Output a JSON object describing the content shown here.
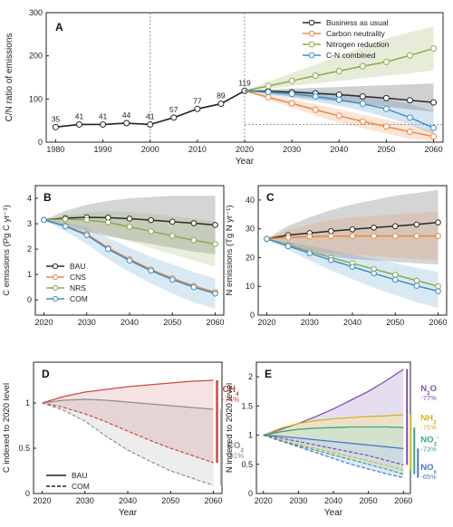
{
  "chart_data": [
    {
      "panel": "A",
      "type": "line",
      "ylabel": "C/N ratio of emissions",
      "xlabel": "Year",
      "xlim": [
        1978,
        2062
      ],
      "ylim": [
        0,
        300
      ],
      "xticks": [
        1980,
        1990,
        2000,
        2010,
        2020,
        2030,
        2040,
        2050,
        2060
      ],
      "yticks": [
        0,
        100,
        200,
        300
      ],
      "vlines": [
        2000,
        2020
      ],
      "hline": 41,
      "history": {
        "x": [
          1980,
          1985,
          1990,
          1995,
          2000,
          2005,
          2010,
          2015,
          2020
        ],
        "values": [
          35,
          41,
          41,
          44,
          41,
          57,
          77,
          89,
          119
        ],
        "labels": [
          "35",
          "41",
          "41",
          "44",
          "41",
          "57",
          "77",
          "89",
          "119"
        ]
      },
      "legend": [
        "Business as usual",
        "Carbon neutrality",
        "Nitrogen reduction",
        "C-N combined"
      ],
      "legend_position": "top-right",
      "series": [
        {
          "name": "Business as usual",
          "color": "#2b2b2b",
          "x": [
            2020,
            2025,
            2030,
            2035,
            2040,
            2045,
            2050,
            2055,
            2060
          ],
          "values": [
            119,
            118,
            116,
            113,
            110,
            106,
            102,
            97,
            92
          ],
          "band_low": [
            119,
            112,
            106,
            100,
            94,
            88,
            82,
            76,
            70
          ],
          "band_high": [
            119,
            122,
            124,
            126,
            128,
            130,
            132,
            134,
            136
          ]
        },
        {
          "name": "Carbon neutrality",
          "color": "#e8894a",
          "x": [
            2020,
            2025,
            2030,
            2035,
            2040,
            2045,
            2050,
            2055,
            2060
          ],
          "values": [
            119,
            104,
            90,
            75,
            61,
            48,
            36,
            24,
            13
          ],
          "band_low": [
            119,
            98,
            80,
            62,
            45,
            32,
            20,
            8,
            2
          ],
          "band_high": [
            119,
            110,
            100,
            88,
            76,
            64,
            52,
            40,
            28
          ]
        },
        {
          "name": "Nitrogen reduction",
          "color": "#8caa4f",
          "x": [
            2020,
            2025,
            2030,
            2035,
            2040,
            2045,
            2050,
            2055,
            2060
          ],
          "values": [
            119,
            130,
            142,
            154,
            165,
            176,
            186,
            201,
            217
          ],
          "band_low": [
            119,
            124,
            130,
            136,
            142,
            148,
            154,
            160,
            166
          ],
          "band_high": [
            119,
            140,
            160,
            180,
            200,
            220,
            240,
            255,
            268
          ]
        },
        {
          "name": "C-N combined",
          "color": "#3f8fc4",
          "x": [
            2020,
            2025,
            2030,
            2035,
            2040,
            2045,
            2050,
            2055,
            2060
          ],
          "values": [
            119,
            116,
            112,
            106,
            98,
            89,
            77,
            57,
            33
          ],
          "band_low": [
            119,
            110,
            102,
            94,
            84,
            72,
            58,
            40,
            18
          ],
          "band_high": [
            119,
            120,
            120,
            118,
            114,
            108,
            100,
            88,
            72
          ]
        }
      ],
      "colors": {
        "bau": "#2b2b2b",
        "cns": "#e8894a",
        "nrs": "#8caa4f",
        "com": "#3f8fc4"
      }
    },
    {
      "panel": "B",
      "type": "line",
      "ylabel": "C emissions (Pg C yr⁻¹)",
      "xlim": [
        2018,
        2062
      ],
      "ylim": [
        -0.6,
        4.5
      ],
      "xticks": [
        2020,
        2030,
        2040,
        2050,
        2060
      ],
      "yticks": [
        0,
        1,
        2,
        3,
        4
      ],
      "legend": [
        "BAU",
        "CNS",
        "NRS",
        "COM"
      ],
      "legend_position": "bottom-left",
      "series": [
        {
          "name": "BAU",
          "color": "#2b2b2b",
          "x": [
            2020,
            2025,
            2030,
            2035,
            2040,
            2045,
            2050,
            2055,
            2060
          ],
          "values": [
            3.15,
            3.22,
            3.25,
            3.24,
            3.2,
            3.14,
            3.08,
            3.02,
            2.95
          ],
          "band_low": [
            3.15,
            2.9,
            2.7,
            2.5,
            2.35,
            2.2,
            2.05,
            1.9,
            1.8
          ],
          "band_high": [
            3.15,
            3.5,
            3.75,
            3.9,
            4.0,
            4.05,
            4.1,
            4.1,
            4.1
          ]
        },
        {
          "name": "CNS",
          "color": "#e8894a",
          "x": [
            2020,
            2025,
            2030,
            2035,
            2040,
            2045,
            2050,
            2055,
            2060
          ],
          "values": [
            3.15,
            2.92,
            2.6,
            2.05,
            1.6,
            1.2,
            0.85,
            0.55,
            0.3
          ]
        },
        {
          "name": "NRS",
          "color": "#8caa4f",
          "x": [
            2020,
            2025,
            2030,
            2035,
            2040,
            2045,
            2050,
            2055,
            2060
          ],
          "values": [
            3.15,
            3.18,
            3.15,
            3.05,
            2.88,
            2.7,
            2.52,
            2.35,
            2.2
          ],
          "band_low": [
            3.15,
            3.0,
            2.8,
            2.55,
            2.3,
            2.05,
            1.8,
            1.55,
            1.3
          ],
          "band_high": [
            3.15,
            3.3,
            3.45,
            3.5,
            3.45,
            3.4,
            3.3,
            3.2,
            3.1
          ]
        },
        {
          "name": "COM",
          "color": "#3f8fc4",
          "x": [
            2020,
            2025,
            2030,
            2035,
            2040,
            2045,
            2050,
            2055,
            2060
          ],
          "values": [
            3.15,
            2.9,
            2.55,
            2.0,
            1.55,
            1.15,
            0.8,
            0.5,
            0.25
          ],
          "band_low": [
            3.15,
            2.7,
            2.2,
            1.6,
            1.1,
            0.65,
            0.25,
            -0.1,
            -0.35
          ],
          "band_high": [
            3.15,
            3.05,
            2.85,
            2.45,
            2.05,
            1.7,
            1.4,
            1.1,
            0.85
          ]
        }
      ]
    },
    {
      "panel": "C",
      "type": "line",
      "ylabel": "N emissions (Tg N yr⁻¹)",
      "xlim": [
        2018,
        2062
      ],
      "ylim": [
        0,
        45
      ],
      "xticks": [
        2020,
        2030,
        2040,
        2050,
        2060
      ],
      "yticks": [
        0,
        10,
        20,
        30,
        40
      ],
      "series": [
        {
          "name": "BAU",
          "color": "#2b2b2b",
          "x": [
            2020,
            2025,
            2030,
            2035,
            2040,
            2045,
            2050,
            2055,
            2060
          ],
          "values": [
            26.5,
            27.8,
            28.5,
            29.2,
            29.8,
            30.4,
            30.9,
            31.5,
            32.2
          ],
          "band_low": [
            26.5,
            24,
            22,
            20.5,
            19.5,
            19,
            18.5,
            18,
            17.5
          ],
          "band_high": [
            26.5,
            31,
            34,
            36.5,
            38.5,
            40,
            41.5,
            42.5,
            43.5
          ]
        },
        {
          "name": "CNS",
          "color": "#e8894a",
          "x": [
            2020,
            2025,
            2030,
            2035,
            2040,
            2045,
            2050,
            2055,
            2060
          ],
          "values": [
            26.5,
            27,
            27.3,
            27.4,
            27.5,
            27.5,
            27.5,
            27.5,
            27.5
          ],
          "band_low": [
            26.5,
            24,
            22.5,
            21.5,
            21,
            20.5,
            20,
            19.5,
            19
          ],
          "band_high": [
            26.5,
            29.5,
            31.5,
            33,
            34,
            34.5,
            35,
            35.5,
            36
          ]
        },
        {
          "name": "NRS",
          "color": "#8caa4f",
          "x": [
            2020,
            2025,
            2030,
            2035,
            2040,
            2045,
            2050,
            2055,
            2060
          ],
          "values": [
            26.5,
            24.3,
            22.1,
            20,
            18,
            16,
            14,
            12,
            10
          ]
        },
        {
          "name": "COM",
          "color": "#3f8fc4",
          "x": [
            2020,
            2025,
            2030,
            2035,
            2040,
            2045,
            2050,
            2055,
            2060
          ],
          "values": [
            26.5,
            24,
            21.5,
            19.1,
            16.8,
            14.5,
            12.3,
            10.2,
            8.3
          ],
          "band_low": [
            26.5,
            22.5,
            19,
            15.5,
            12.5,
            9.5,
            7,
            4.5,
            2.5
          ],
          "band_high": [
            26.5,
            25.5,
            24,
            22.5,
            21,
            19.5,
            18,
            16.5,
            15
          ]
        }
      ]
    },
    {
      "panel": "D",
      "type": "area",
      "ylabel": "C indexed to 2020 level",
      "xlabel": "Year",
      "xlim": [
        2018,
        2062
      ],
      "ylim": [
        0,
        1.45
      ],
      "xticks": [
        2020,
        2030,
        2040,
        2050,
        2060
      ],
      "yticks": [
        0,
        0.5,
        1
      ],
      "ytick_labels": [
        "0",
        "0.5",
        "1"
      ],
      "line_legend": [
        "BAU",
        "COM"
      ],
      "series": [
        {
          "name": "CH4",
          "label_main": "CH",
          "label_sub": "4",
          "change": "-74%",
          "color": "#c84b4b",
          "x": [
            2020,
            2025,
            2030,
            2035,
            2040,
            2045,
            2050,
            2055,
            2060
          ],
          "bau": [
            1.0,
            1.07,
            1.12,
            1.15,
            1.18,
            1.2,
            1.22,
            1.24,
            1.25
          ],
          "com": [
            1.0,
            0.95,
            0.88,
            0.79,
            0.69,
            0.59,
            0.5,
            0.42,
            0.34
          ]
        },
        {
          "name": "CO2",
          "label_main": "CO",
          "label_sub": "2",
          "change": "-91%",
          "color": "#8f8f8f",
          "x": [
            2020,
            2025,
            2030,
            2035,
            2040,
            2045,
            2050,
            2055,
            2060
          ],
          "bau": [
            1.0,
            1.03,
            1.04,
            1.03,
            1.01,
            0.99,
            0.97,
            0.95,
            0.93
          ],
          "com": [
            1.0,
            0.92,
            0.8,
            0.63,
            0.48,
            0.36,
            0.25,
            0.17,
            0.09
          ]
        }
      ]
    },
    {
      "panel": "E",
      "type": "area",
      "ylabel": "N indexed to 2020 level",
      "xlabel": "Year",
      "xlim": [
        2018,
        2062
      ],
      "ylim": [
        0,
        2.25
      ],
      "xticks": [
        2020,
        2030,
        2040,
        2050,
        2060
      ],
      "yticks": [
        0,
        0.5,
        1,
        1.5,
        2
      ],
      "ytick_labels": [
        "0",
        "0.5",
        "1",
        "1.5",
        "2"
      ],
      "series": [
        {
          "name": "N2O",
          "label_main": "N",
          "label_sub": "2",
          "label_tail": "O",
          "change": "-77%",
          "color": "#7b4fa8",
          "fill": "#cfc2e6",
          "x": [
            2020,
            2025,
            2030,
            2035,
            2040,
            2045,
            2050,
            2055,
            2060
          ],
          "bau": [
            1.0,
            1.1,
            1.2,
            1.32,
            1.45,
            1.6,
            1.75,
            1.93,
            2.13
          ],
          "com": [
            1.0,
            0.95,
            0.89,
            0.83,
            0.77,
            0.71,
            0.65,
            0.57,
            0.49
          ]
        },
        {
          "name": "NH3",
          "label_main": "NH",
          "label_sub": "3",
          "change": "-75%",
          "color": "#d7b22a",
          "fill": "#f2e3a6",
          "x": [
            2020,
            2025,
            2030,
            2035,
            2040,
            2045,
            2050,
            2055,
            2060
          ],
          "bau": [
            1.0,
            1.12,
            1.2,
            1.25,
            1.28,
            1.3,
            1.32,
            1.33,
            1.35
          ],
          "com": [
            1.0,
            0.92,
            0.84,
            0.77,
            0.7,
            0.63,
            0.56,
            0.48,
            0.4
          ]
        },
        {
          "name": "NO3-",
          "label_main": "NO",
          "label_sub": "3",
          "label_sup": "-",
          "change": "-73%",
          "color": "#3aa77e",
          "fill": "#bfe3cf",
          "x": [
            2020,
            2025,
            2030,
            2035,
            2040,
            2045,
            2050,
            2055,
            2060
          ],
          "bau": [
            1.0,
            1.06,
            1.1,
            1.12,
            1.13,
            1.14,
            1.14,
            1.14,
            1.13
          ],
          "com": [
            1.0,
            0.9,
            0.82,
            0.74,
            0.66,
            0.58,
            0.5,
            0.42,
            0.33
          ]
        },
        {
          "name": "NOx",
          "label_main": "NO",
          "label_sub": "x",
          "change": "-65%",
          "color": "#4a78c2",
          "fill": "#c6d6ef",
          "x": [
            2020,
            2025,
            2030,
            2035,
            2040,
            2045,
            2050,
            2055,
            2060
          ],
          "bau": [
            1.0,
            0.98,
            0.95,
            0.92,
            0.89,
            0.86,
            0.83,
            0.8,
            0.77
          ],
          "com": [
            1.0,
            0.9,
            0.8,
            0.7,
            0.6,
            0.5,
            0.42,
            0.34,
            0.27
          ]
        }
      ]
    }
  ]
}
